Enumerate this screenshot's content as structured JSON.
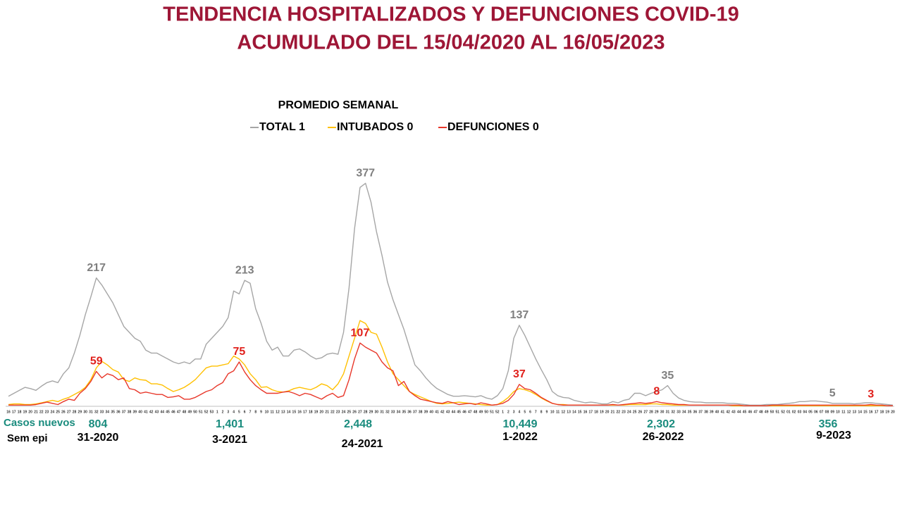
{
  "chart_data": {
    "type": "line",
    "title": "TENDENCIA HOSPITALIZADOS  Y DEFUNCIONES COVID-19",
    "subtitle": "ACUMULADO DEL 15/04/2020 AL 16/05/2023",
    "legend_title": "PROMEDIO SEMANAL",
    "categories": [
      "16",
      "17",
      "18",
      "19",
      "20",
      "21",
      "22",
      "23",
      "24",
      "25",
      "26",
      "27",
      "28",
      "29",
      "30",
      "31",
      "32",
      "33",
      "34",
      "35",
      "36",
      "37",
      "38",
      "39",
      "40",
      "41",
      "42",
      "43",
      "44",
      "45",
      "46",
      "47",
      "48",
      "49",
      "50",
      "51",
      "52",
      "53",
      "1",
      "2",
      "3",
      "4",
      "5",
      "6",
      "7",
      "8",
      "9",
      "10",
      "11",
      "12",
      "13",
      "14",
      "15",
      "16",
      "17",
      "18",
      "19",
      "20",
      "21",
      "22",
      "23",
      "24",
      "25",
      "26",
      "27",
      "28",
      "29",
      "30",
      "31",
      "32",
      "33",
      "34",
      "35",
      "36",
      "37",
      "38",
      "39",
      "40",
      "41",
      "42",
      "43",
      "44",
      "45",
      "46",
      "47",
      "48",
      "49",
      "50",
      "51",
      "52",
      "1",
      "2",
      "3",
      "4",
      "5",
      "6",
      "7",
      "8",
      "9",
      "10",
      "11",
      "12",
      "13",
      "14",
      "15",
      "16",
      "17",
      "18",
      "19",
      "20",
      "21",
      "22",
      "23",
      "24",
      "25",
      "26",
      "27",
      "28",
      "29",
      "30",
      "31",
      "32",
      "33",
      "34",
      "35",
      "36",
      "37",
      "38",
      "39",
      "40",
      "41",
      "42",
      "43",
      "44",
      "45",
      "46",
      "47",
      "48",
      "49",
      "50",
      "51",
      "52",
      "01",
      "02",
      "03",
      "04",
      "05",
      "06",
      "07",
      "08",
      "09",
      "10",
      "11",
      "12",
      "13",
      "14",
      "15",
      "16",
      "17",
      "18",
      "19",
      "20"
    ],
    "series": [
      {
        "name": "TOTAL 1",
        "color": "#a6a6a6",
        "label_color": "#7f7f7f",
        "values": [
          17,
          22,
          27,
          32,
          30,
          27,
          34,
          40,
          43,
          40,
          55,
          65,
          90,
          120,
          155,
          185,
          217,
          205,
          190,
          175,
          155,
          135,
          125,
          115,
          110,
          95,
          90,
          90,
          85,
          80,
          75,
          72,
          75,
          72,
          80,
          80,
          105,
          115,
          125,
          135,
          150,
          195,
          190,
          213,
          208,
          165,
          140,
          110,
          95,
          100,
          85,
          85,
          95,
          97,
          92,
          85,
          80,
          82,
          88,
          90,
          88,
          125,
          200,
          300,
          370,
          377,
          345,
          295,
          255,
          210,
          180,
          155,
          130,
          100,
          70,
          60,
          48,
          38,
          30,
          25,
          20,
          17,
          17,
          18,
          17,
          16,
          18,
          14,
          12,
          18,
          30,
          60,
          115,
          137,
          120,
          100,
          80,
          62,
          45,
          25,
          18,
          15,
          14,
          10,
          8,
          6,
          7,
          6,
          4,
          4,
          8,
          6,
          10,
          12,
          22,
          22,
          18,
          22,
          25,
          28,
          35,
          22,
          14,
          10,
          8,
          7,
          7,
          6,
          6,
          6,
          6,
          5,
          5,
          4,
          3,
          2,
          2,
          2,
          3,
          3,
          3,
          4,
          5,
          6,
          8,
          8,
          9,
          9,
          8,
          7,
          5,
          5,
          5,
          5,
          4,
          5,
          6,
          6,
          5,
          4,
          3,
          2
        ],
        "value_labels": [
          null,
          null,
          null,
          null,
          null,
          null,
          null,
          null,
          null,
          null,
          null,
          null,
          null,
          null,
          null,
          null,
          "217",
          null,
          null,
          null,
          null,
          null,
          null,
          null,
          null,
          null,
          null,
          null,
          null,
          null,
          null,
          null,
          null,
          null,
          null,
          null,
          null,
          null,
          null,
          null,
          null,
          null,
          null,
          "213",
          null,
          null,
          null,
          null,
          null,
          null,
          null,
          null,
          null,
          null,
          null,
          null,
          null,
          null,
          null,
          null,
          null,
          null,
          null,
          null,
          null,
          "377",
          null,
          null,
          null,
          null,
          null,
          null,
          null,
          null,
          null,
          null,
          null,
          null,
          null,
          null,
          null,
          null,
          null,
          null,
          null,
          null,
          null,
          null,
          null,
          null,
          null,
          null,
          null,
          "137",
          null,
          null,
          null,
          null,
          null,
          null,
          null,
          null,
          null,
          null,
          null,
          null,
          null,
          null,
          null,
          null,
          null,
          null,
          null,
          null,
          null,
          null,
          null,
          null,
          null,
          null,
          "35",
          null,
          null,
          null,
          null,
          null,
          null,
          null,
          null,
          null,
          null,
          null,
          null,
          null,
          null,
          null,
          null,
          null,
          null,
          null,
          null,
          null,
          null,
          null,
          null,
          null,
          null,
          null,
          null,
          null,
          "5",
          null,
          null,
          null,
          null,
          null,
          null,
          null,
          null,
          null,
          null,
          null
        ]
      },
      {
        "name": "INTUBADOS 0",
        "color": "#ffc000",
        "values": [
          3,
          4,
          4,
          3,
          3,
          4,
          6,
          8,
          10,
          8,
          12,
          15,
          20,
          25,
          32,
          45,
          65,
          76,
          70,
          62,
          58,
          45,
          42,
          48,
          45,
          44,
          38,
          38,
          36,
          30,
          25,
          28,
          32,
          38,
          45,
          55,
          65,
          68,
          68,
          70,
          72,
          85,
          80,
          70,
          55,
          45,
          32,
          33,
          28,
          25,
          24,
          26,
          30,
          32,
          30,
          28,
          32,
          38,
          35,
          28,
          38,
          55,
          85,
          115,
          145,
          140,
          125,
          122,
          100,
          75,
          55,
          45,
          35,
          25,
          20,
          16,
          12,
          8,
          5,
          4,
          5,
          6,
          7,
          6,
          5,
          4,
          3,
          2,
          2,
          3,
          8,
          15,
          25,
          30,
          28,
          25,
          20,
          14,
          9,
          5,
          3,
          3,
          2,
          2,
          2,
          2,
          2,
          2,
          2,
          2,
          2,
          2,
          2,
          3,
          3,
          3,
          3,
          4,
          4,
          3,
          3,
          2,
          2,
          2,
          2,
          2,
          2,
          2,
          2,
          2,
          2,
          2,
          1,
          1,
          1,
          1,
          1,
          1,
          1,
          1,
          1,
          1,
          1,
          1,
          1,
          1,
          1,
          1,
          1,
          1,
          1,
          1,
          1,
          1,
          1,
          1,
          1,
          1,
          1,
          1,
          1,
          1
        ]
      },
      {
        "name": "DEFUNCIONES 0",
        "color": "#e8372a",
        "label_color": "#e0201b",
        "values": [
          2,
          2,
          2,
          2,
          2,
          3,
          5,
          7,
          5,
          3,
          8,
          12,
          10,
          22,
          30,
          42,
          59,
          48,
          55,
          52,
          45,
          48,
          30,
          28,
          22,
          24,
          22,
          20,
          20,
          15,
          16,
          18,
          12,
          12,
          15,
          20,
          25,
          28,
          35,
          40,
          55,
          60,
          75,
          58,
          45,
          35,
          28,
          22,
          22,
          22,
          24,
          25,
          22,
          18,
          22,
          20,
          16,
          12,
          18,
          22,
          15,
          18,
          45,
          80,
          107,
          100,
          95,
          90,
          75,
          65,
          60,
          35,
          42,
          25,
          18,
          12,
          10,
          8,
          6,
          5,
          8,
          6,
          3,
          4,
          5,
          3,
          6,
          4,
          2,
          3,
          5,
          10,
          20,
          37,
          30,
          28,
          22,
          15,
          10,
          5,
          3,
          2,
          2,
          2,
          2,
          2,
          2,
          2,
          2,
          2,
          3,
          2,
          3,
          4,
          5,
          6,
          5,
          6,
          8,
          6,
          5,
          4,
          3,
          3,
          2,
          2,
          2,
          2,
          2,
          2,
          2,
          2,
          2,
          2,
          1,
          1,
          1,
          1,
          1,
          2,
          2,
          2,
          2,
          2,
          2,
          2,
          2,
          2,
          2,
          2,
          2,
          2,
          2,
          2,
          2,
          2,
          2,
          3,
          2,
          2,
          1,
          1
        ],
        "value_labels": [
          null,
          null,
          null,
          null,
          null,
          null,
          null,
          null,
          null,
          null,
          null,
          null,
          null,
          null,
          null,
          null,
          "59",
          null,
          null,
          null,
          null,
          null,
          null,
          null,
          null,
          null,
          null,
          null,
          null,
          null,
          null,
          null,
          null,
          null,
          null,
          null,
          null,
          null,
          null,
          null,
          null,
          null,
          "75",
          null,
          null,
          null,
          null,
          null,
          null,
          null,
          null,
          null,
          null,
          null,
          null,
          null,
          null,
          null,
          null,
          null,
          null,
          null,
          null,
          null,
          "107",
          null,
          null,
          null,
          null,
          null,
          null,
          null,
          null,
          null,
          null,
          null,
          null,
          null,
          null,
          null,
          null,
          null,
          null,
          null,
          null,
          null,
          null,
          null,
          null,
          null,
          null,
          null,
          null,
          "37",
          null,
          null,
          null,
          null,
          null,
          null,
          null,
          null,
          null,
          null,
          null,
          null,
          null,
          null,
          null,
          null,
          null,
          null,
          null,
          null,
          null,
          null,
          null,
          null,
          "8",
          null,
          null,
          null,
          null,
          null,
          null,
          null,
          null,
          null,
          null,
          null,
          null,
          null,
          null,
          null,
          null,
          null,
          null,
          null,
          null,
          null,
          null,
          null,
          null,
          null,
          null,
          null,
          null,
          null,
          null,
          null,
          null,
          null,
          null,
          null,
          null,
          null,
          null,
          "3",
          null,
          null,
          null,
          null
        ]
      }
    ],
    "footer": {
      "cases_label": "Casos nuevos",
      "cases": [
        "804",
        "1,401",
        "2,448",
        "10,449",
        "2,302",
        "356"
      ],
      "weeks_label": "Sem epi",
      "weeks": [
        "31-2020",
        "3-2021",
        "24-2021",
        "1-2022",
        "26-2022",
        "9-2023"
      ]
    }
  }
}
